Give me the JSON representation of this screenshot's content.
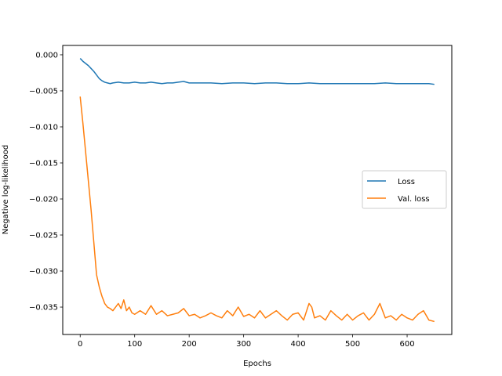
{
  "chart_data": {
    "type": "line",
    "title": "",
    "xlabel": "Epochs",
    "ylabel": "Negative log-likelihood",
    "xlim": [
      -32,
      682
    ],
    "ylim": [
      -0.0388,
      0.0013
    ],
    "xticks": [
      0,
      100,
      200,
      300,
      400,
      500,
      600
    ],
    "yticks": [
      0.0,
      -0.005,
      -0.01,
      -0.015,
      -0.02,
      -0.025,
      -0.03,
      -0.035
    ],
    "ytick_labels": [
      "0.000",
      "−0.005",
      "−0.010",
      "−0.015",
      "−0.020",
      "−0.025",
      "−0.030",
      "−0.035"
    ],
    "grid": false,
    "legend_position": "center-right",
    "series": [
      {
        "name": "Loss",
        "color": "#1f77b4",
        "x": [
          0,
          5,
          10,
          15,
          20,
          25,
          30,
          35,
          40,
          45,
          50,
          55,
          60,
          70,
          80,
          90,
          100,
          110,
          120,
          130,
          140,
          150,
          160,
          170,
          180,
          190,
          200,
          220,
          240,
          260,
          280,
          300,
          320,
          340,
          360,
          380,
          400,
          420,
          440,
          460,
          480,
          500,
          520,
          540,
          560,
          580,
          600,
          620,
          640,
          650
        ],
        "y": [
          -0.0005,
          -0.0009,
          -0.0012,
          -0.0015,
          -0.0019,
          -0.0023,
          -0.0028,
          -0.0033,
          -0.0036,
          -0.0038,
          -0.0039,
          -0.004,
          -0.0039,
          -0.0038,
          -0.0039,
          -0.0039,
          -0.0038,
          -0.0039,
          -0.0039,
          -0.0038,
          -0.0039,
          -0.004,
          -0.0039,
          -0.0039,
          -0.0038,
          -0.0037,
          -0.0039,
          -0.0039,
          -0.0039,
          -0.004,
          -0.0039,
          -0.0039,
          -0.004,
          -0.0039,
          -0.0039,
          -0.004,
          -0.004,
          -0.0039,
          -0.004,
          -0.004,
          -0.004,
          -0.004,
          -0.004,
          -0.004,
          -0.0039,
          -0.004,
          -0.004,
          -0.004,
          -0.004,
          -0.0041
        ]
      },
      {
        "name": "Val. loss",
        "color": "#ff7f0e",
        "x": [
          0,
          5,
          10,
          15,
          20,
          25,
          30,
          35,
          38,
          40,
          45,
          50,
          55,
          60,
          65,
          70,
          75,
          80,
          85,
          90,
          95,
          100,
          110,
          120,
          130,
          140,
          150,
          160,
          170,
          180,
          190,
          200,
          210,
          220,
          230,
          240,
          250,
          260,
          270,
          280,
          290,
          300,
          310,
          320,
          330,
          340,
          350,
          360,
          370,
          380,
          390,
          400,
          410,
          420,
          425,
          430,
          440,
          450,
          460,
          470,
          480,
          490,
          500,
          510,
          520,
          530,
          540,
          550,
          560,
          570,
          580,
          590,
          600,
          610,
          620,
          630,
          640,
          650
        ],
        "y": [
          -0.0058,
          -0.0095,
          -0.0135,
          -0.0175,
          -0.0215,
          -0.026,
          -0.0305,
          -0.0322,
          -0.033,
          -0.0335,
          -0.0345,
          -0.035,
          -0.0352,
          -0.0355,
          -0.035,
          -0.0345,
          -0.0352,
          -0.034,
          -0.0355,
          -0.035,
          -0.0358,
          -0.036,
          -0.0355,
          -0.036,
          -0.0348,
          -0.036,
          -0.0355,
          -0.0362,
          -0.036,
          -0.0358,
          -0.0352,
          -0.0362,
          -0.036,
          -0.0365,
          -0.0362,
          -0.0358,
          -0.0362,
          -0.0365,
          -0.0355,
          -0.0362,
          -0.035,
          -0.0363,
          -0.036,
          -0.0365,
          -0.0355,
          -0.0365,
          -0.036,
          -0.0355,
          -0.0362,
          -0.0368,
          -0.036,
          -0.0358,
          -0.0368,
          -0.0345,
          -0.035,
          -0.0365,
          -0.0362,
          -0.0368,
          -0.0355,
          -0.0362,
          -0.0368,
          -0.036,
          -0.0368,
          -0.0362,
          -0.0358,
          -0.0368,
          -0.036,
          -0.0345,
          -0.0365,
          -0.0362,
          -0.0368,
          -0.036,
          -0.0365,
          -0.0368,
          -0.036,
          -0.0355,
          -0.0368,
          -0.037
        ]
      }
    ]
  }
}
